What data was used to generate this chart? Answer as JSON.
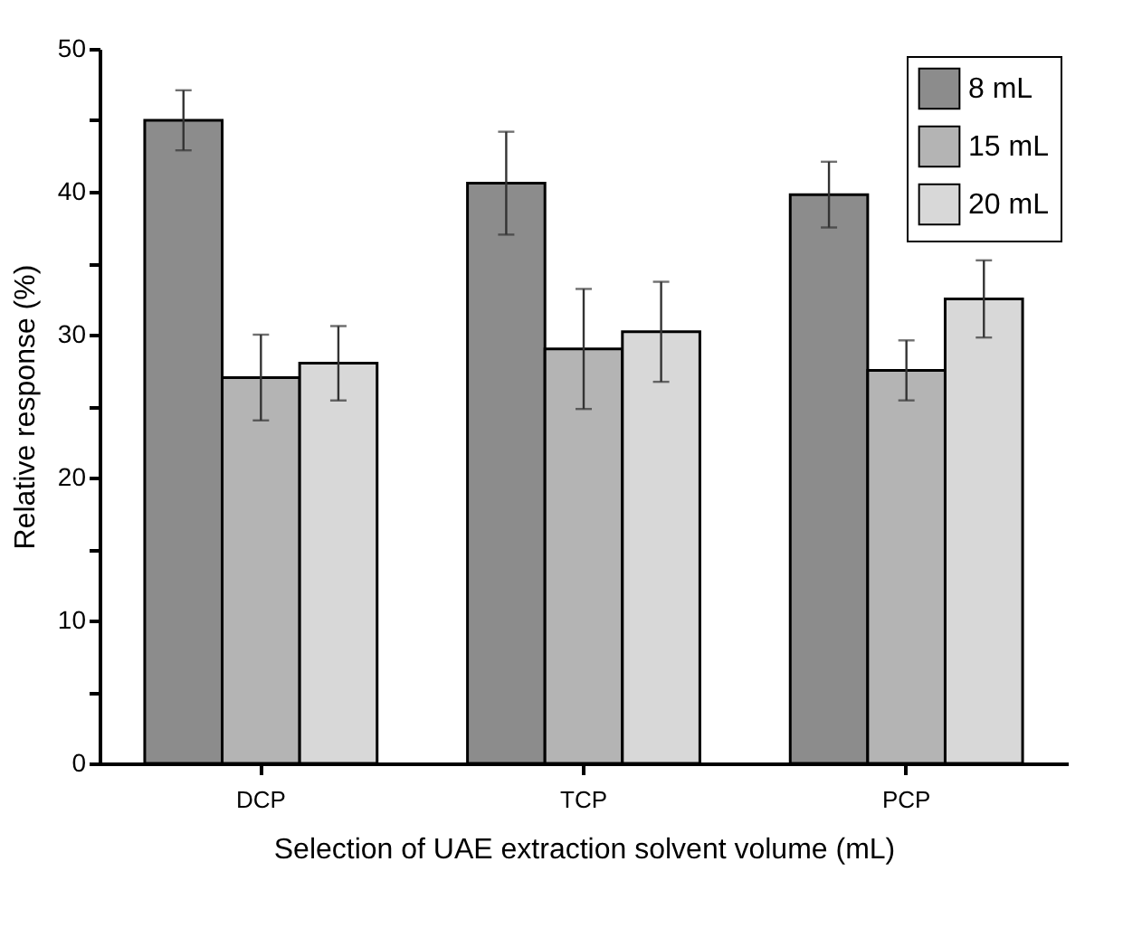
{
  "chart_data": {
    "type": "bar",
    "xlabel": "Selection of UAE extraction solvent volume (mL)",
    "ylabel": "Relative response (%)",
    "categories": [
      "DCP",
      "TCP",
      "PCP"
    ],
    "series": [
      {
        "name": "8  mL",
        "color": "#8c8c8c",
        "values": [
          45.0,
          40.6,
          39.8
        ],
        "errors": [
          2.1,
          3.6,
          2.3
        ]
      },
      {
        "name": "15 mL",
        "color": "#b4b4b4",
        "values": [
          27.0,
          29.0,
          27.5
        ],
        "errors": [
          3.0,
          4.2,
          2.1
        ]
      },
      {
        "name": "20 mL",
        "color": "#d8d8d8",
        "values": [
          28.0,
          30.2,
          32.5
        ],
        "errors": [
          2.6,
          3.5,
          2.7
        ]
      }
    ],
    "ylim": [
      0,
      50
    ],
    "yticks": [
      0,
      {
        "value": 5,
        "label": null
      },
      10,
      {
        "value": 15,
        "label": null
      },
      20,
      {
        "value": 25,
        "label": null
      },
      30,
      {
        "value": 35,
        "label": null
      },
      40,
      {
        "value": 45,
        "label": null
      },
      50
    ],
    "grid": false,
    "legend": "top right"
  }
}
